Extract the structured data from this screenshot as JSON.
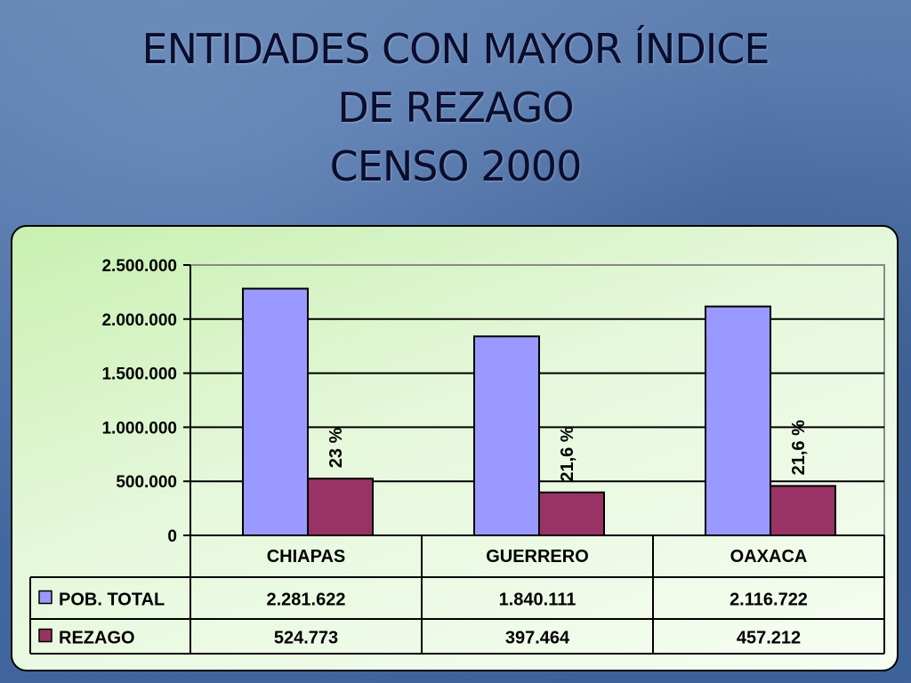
{
  "slide": {
    "title_lines": [
      "ENTIDADES CON MAYOR ÍNDICE",
      "DE REZAGO",
      "CENSO 2000"
    ]
  },
  "chart_data": {
    "type": "bar",
    "title": "",
    "xlabel": "",
    "ylabel": "",
    "categories": [
      "CHIAPAS",
      "GUERRERO",
      "OAXACA"
    ],
    "ylim": [
      0,
      2500000
    ],
    "y_ticks": [
      "2.500.000",
      "2.000.000",
      "1.500.000",
      "1.000.000",
      "500.000",
      "0"
    ],
    "grid": true,
    "legend_placement": "data-table",
    "series": [
      {
        "name": "POB. TOTAL",
        "color": "#9999ff",
        "values": [
          2281622,
          1840111,
          2116722
        ],
        "table_values": [
          "2.281.622",
          "1.840.111",
          "2.116.722"
        ]
      },
      {
        "name": "REZAGO",
        "color": "#993366",
        "values": [
          524773,
          397464,
          457212
        ],
        "table_values": [
          "524.773",
          "397.464",
          "457.212"
        ]
      }
    ],
    "annotations": [
      "23 %",
      "21,6 %",
      "21,6 %"
    ]
  }
}
